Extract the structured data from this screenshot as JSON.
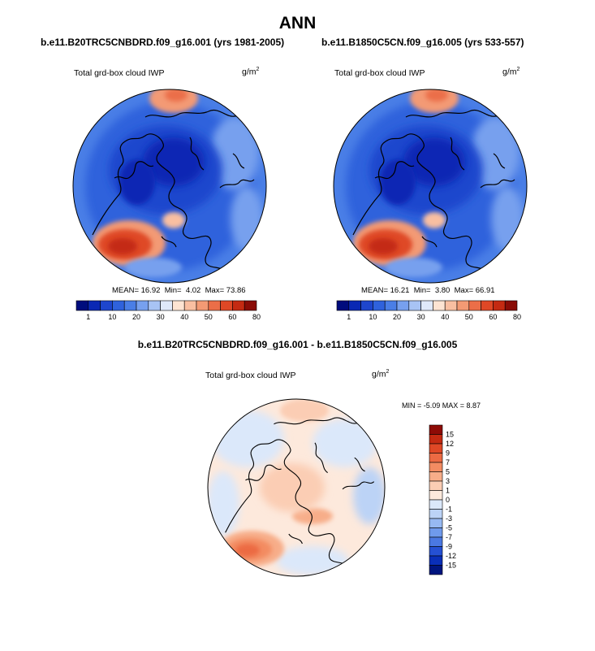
{
  "figure_title": "ANN",
  "panels": [
    {
      "case": "b.e11.B20TRC5CNBDRD.f09_g16.001 (yrs 1981-2005)",
      "variable": "Total grd-box cloud IWP",
      "units": "g/m",
      "units_exp": "2",
      "mean_label": "MEAN=",
      "mean": "16.92",
      "min_label": "Min=",
      "min": "4.02",
      "max_label": "Max=",
      "max": "73.86"
    },
    {
      "case": "b.e11.B1850C5CN.f09_g16.005 (yrs 533-557)",
      "variable": "Total grd-box cloud IWP",
      "units": "g/m",
      "units_exp": "2",
      "mean_label": "MEAN=",
      "mean": "16.21",
      "min_label": "Min=",
      "min": "3.80",
      "max_label": "Max=",
      "max": "66.91"
    }
  ],
  "diff": {
    "case": "b.e11.B20TRC5CNBDRD.f09_g16.001 - b.e11.B1850C5CN.f09_g16.005",
    "variable": "Total grd-box cloud IWP",
    "units": "g/m",
    "units_exp": "2",
    "minmax_label": "MIN =  -5.09 MAX =   8.87"
  },
  "chart_data": [
    {
      "type": "heatmap",
      "projection": "north polar stereographic",
      "title": "b.e11.B20TRC5CNBDRD.f09_g16.001 (yrs 1981-2005)",
      "variable": "Total grd-box cloud IWP",
      "units": "g/m2",
      "colorbar_labels": [
        "1",
        "10",
        "20",
        "30",
        "40",
        "50",
        "60",
        "80"
      ],
      "colorbar_colors": [
        "#000c7d",
        "#0a28b4",
        "#1e46cd",
        "#2f62dc",
        "#4a7ee6",
        "#77a0ee",
        "#a8c3f4",
        "#dfe9fa",
        "#fde4d2",
        "#f9bfa1",
        "#f39a74",
        "#eb6e48",
        "#df4826",
        "#c42a12",
        "#8a0c06"
      ],
      "mean": 16.92,
      "min": 4.02,
      "max": 73.86
    },
    {
      "type": "heatmap",
      "projection": "north polar stereographic",
      "title": "b.e11.B1850C5CN.f09_g16.005 (yrs 533-557)",
      "variable": "Total grd-box cloud IWP",
      "units": "g/m2",
      "colorbar_labels": [
        "1",
        "10",
        "20",
        "30",
        "40",
        "50",
        "60",
        "80"
      ],
      "colorbar_colors": [
        "#000c7d",
        "#0a28b4",
        "#1e46cd",
        "#2f62dc",
        "#4a7ee6",
        "#77a0ee",
        "#a8c3f4",
        "#dfe9fa",
        "#fde4d2",
        "#f9bfa1",
        "#f39a74",
        "#eb6e48",
        "#df4826",
        "#c42a12",
        "#8a0c06"
      ],
      "mean": 16.21,
      "min": 3.8,
      "max": 66.91
    },
    {
      "type": "heatmap",
      "projection": "north polar stereographic",
      "title": "b.e11.B20TRC5CNBDRD.f09_g16.001 - b.e11.B1850C5CN.f09_g16.005",
      "variable": "Total grd-box cloud IWP",
      "units": "g/m2",
      "colorbar_labels": [
        "15",
        "12",
        "9",
        "7",
        "5",
        "3",
        "1",
        "0",
        "-1",
        "-3",
        "-5",
        "-7",
        "-9",
        "-12",
        "-15"
      ],
      "colorbar_colors": [
        "#8e0b06",
        "#c42a12",
        "#df4826",
        "#ec6a43",
        "#f38c62",
        "#f7ad89",
        "#fbcdb4",
        "#fde9dc",
        "#dbe8fa",
        "#bcd3f6",
        "#97b9f2",
        "#6f9aec",
        "#4a78e2",
        "#2550d3",
        "#0a2fb8",
        "#00157f"
      ],
      "min": -5.09,
      "max": 8.87
    }
  ]
}
